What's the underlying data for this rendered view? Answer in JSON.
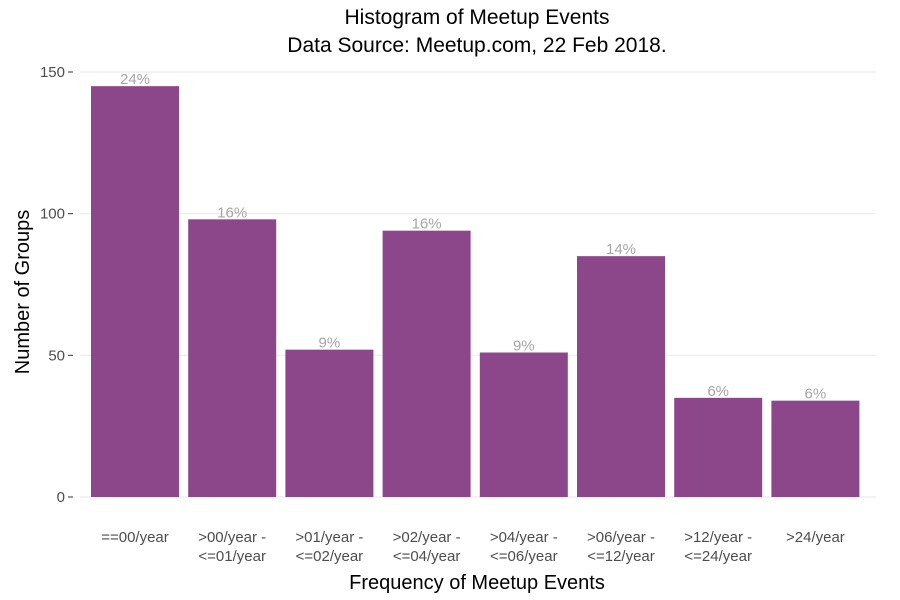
{
  "chart_data": {
    "type": "bar",
    "title": "Histogram of Meetup Events",
    "subtitle": "Data Source: Meetup.com, 22 Feb 2018.",
    "xlabel": "Frequency of Meetup Events",
    "ylabel": "Number of Groups",
    "ylim": [
      0,
      150
    ],
    "yticks": [
      0,
      50,
      100,
      150
    ],
    "grid": true,
    "bar_color": "#8b4789",
    "categories": [
      [
        "==00/year"
      ],
      [
        ">00/year -",
        "<=01/year"
      ],
      [
        ">01/year -",
        "<=02/year"
      ],
      [
        ">02/year -",
        "<=04/year"
      ],
      [
        ">04/year -",
        "<=06/year"
      ],
      [
        ">06/year -",
        "<=12/year"
      ],
      [
        ">12/year -",
        "<=24/year"
      ],
      [
        ">24/year"
      ]
    ],
    "values": [
      145,
      98,
      52,
      94,
      51,
      85,
      35,
      34
    ],
    "labels": [
      "24%",
      "16%",
      "9%",
      "16%",
      "9%",
      "14%",
      "6%",
      "6%"
    ]
  }
}
